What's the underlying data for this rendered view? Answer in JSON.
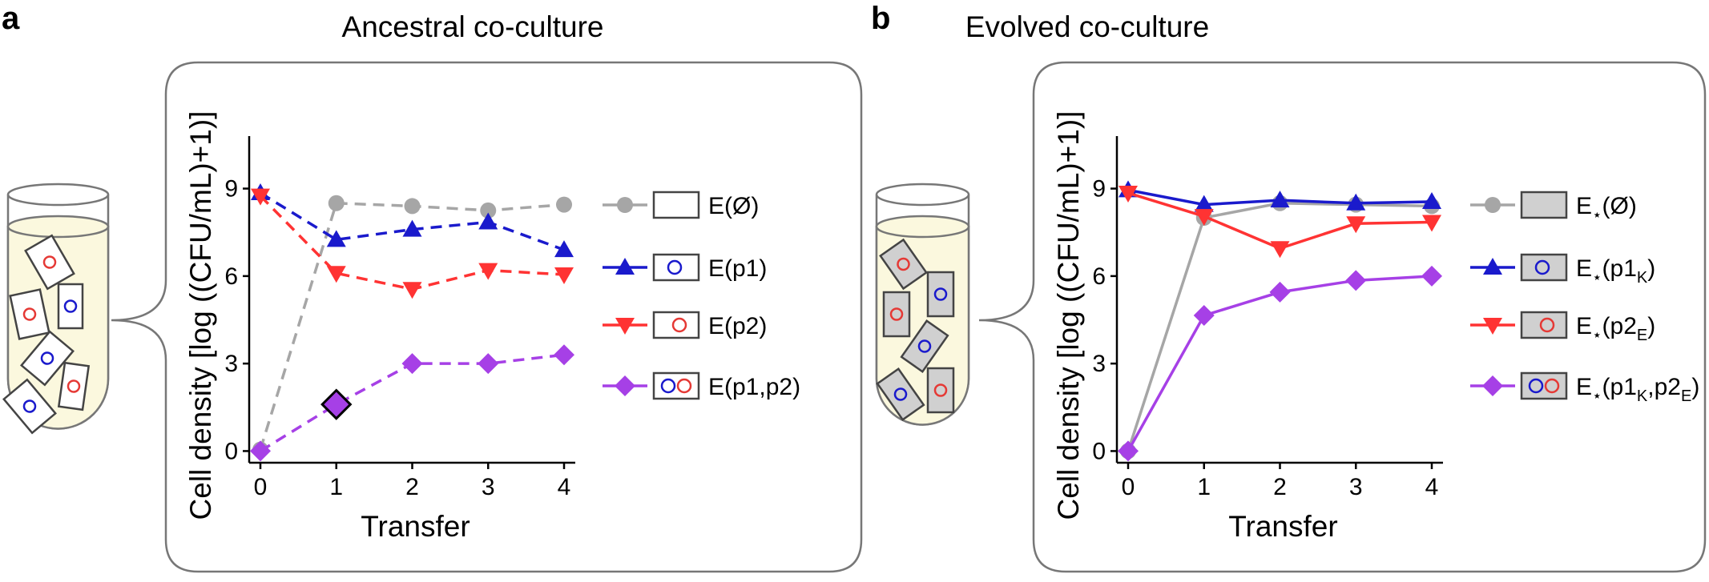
{
  "panels": [
    {
      "letter": "a",
      "title": "Ancestral co-culture",
      "cells": [
        {
          "color": "#e53935",
          "spots": [
            {
              "c": "#e53935"
            }
          ]
        },
        {
          "color": "#1a1acc",
          "spots": [
            {
              "c": "#1a1acc"
            }
          ]
        },
        {
          "color": "#e53935",
          "spots": [
            {
              "c": "#e53935"
            }
          ]
        },
        {
          "color": "#1a1acc",
          "spots": [
            {
              "c": "#1a1acc"
            }
          ]
        },
        {
          "color": "#e53935",
          "spots": [
            {
              "c": "#e53935"
            }
          ]
        },
        {
          "color": "#1a1acc",
          "spots": [
            {
              "c": "#1a1acc"
            }
          ]
        }
      ],
      "legend": [
        {
          "text": "E(Ø)",
          "sub": "",
          "tail": ""
        },
        {
          "text": "E(p1)",
          "sub": "",
          "tail": ""
        },
        {
          "text": "E(p2)",
          "sub": "",
          "tail": ""
        },
        {
          "text": "E(p1,p2)",
          "sub": "",
          "tail": ""
        }
      ]
    },
    {
      "letter": "b",
      "title": "Evolved co-culture",
      "cells": [
        {
          "color": "#e53935",
          "spots": [
            {
              "c": "#e53935"
            }
          ]
        },
        {
          "color": "#1a1acc",
          "spots": [
            {
              "c": "#1a1acc"
            }
          ]
        },
        {
          "color": "#e53935",
          "spots": [
            {
              "c": "#e53935"
            }
          ]
        },
        {
          "color": "#1a1acc",
          "spots": [
            {
              "c": "#1a1acc"
            }
          ]
        },
        {
          "color": "#1a1acc",
          "spots": [
            {
              "c": "#1a1acc"
            }
          ]
        },
        {
          "color": "#e53935",
          "spots": [
            {
              "c": "#e53935"
            }
          ]
        }
      ],
      "legend": [
        {
          "pre": "E",
          "star": "⋆",
          "text": "(Ø)"
        },
        {
          "pre": "E",
          "star": "⋆",
          "text": "(p1",
          "sub": "K",
          "tail": ")"
        },
        {
          "pre": "E",
          "star": "⋆",
          "text": "(p2",
          "sub": "E",
          "tail": ")"
        },
        {
          "pre": "E",
          "star": "⋆",
          "text": "(p1",
          "sub": "K",
          "mid": ",p2",
          "sub2": "E",
          "tail": ")"
        }
      ]
    }
  ],
  "chart_data": [
    {
      "type": "line",
      "title": "Ancestral co-culture",
      "xlabel": "Transfer",
      "ylabel": "Cell density [log ((CFU/mL)+1)]",
      "x": [
        0,
        1,
        2,
        3,
        4
      ],
      "xticks": [
        "0",
        "1",
        "2",
        "3",
        "4"
      ],
      "yticks": [
        "0",
        "3",
        "6",
        "9"
      ],
      "ylim": [
        -0.4,
        10.8
      ],
      "line_style": "dashed",
      "series": [
        {
          "name": "E(Ø)",
          "color": "#a6a6a6",
          "marker": "circle",
          "values": [
            0.05,
            8.5,
            8.4,
            8.25,
            8.45
          ]
        },
        {
          "name": "E(p1)",
          "color": "#1a1acc",
          "marker": "triangle-up",
          "values": [
            8.85,
            7.25,
            7.6,
            7.85,
            6.9
          ]
        },
        {
          "name": "E(p2)",
          "color": "#ff3333",
          "marker": "triangle-down",
          "values": [
            8.75,
            6.1,
            5.55,
            6.2,
            6.05
          ]
        },
        {
          "name": "E(p1,p2)",
          "color": "#a640e6",
          "marker": "diamond",
          "values": [
            0.0,
            1.6,
            3.0,
            3.0,
            3.3
          ],
          "highlight_index": 1
        }
      ]
    },
    {
      "type": "line",
      "title": "Evolved co-culture",
      "xlabel": "Transfer",
      "ylabel": "Cell density [log ((CFU/mL)+1)]",
      "x": [
        0,
        1,
        2,
        3,
        4
      ],
      "xticks": [
        "0",
        "1",
        "2",
        "3",
        "4"
      ],
      "yticks": [
        "0",
        "3",
        "6",
        "9"
      ],
      "ylim": [
        -0.4,
        10.8
      ],
      "line_style": "solid",
      "series": [
        {
          "name": "E⋆(Ø)",
          "color": "#a6a6a6",
          "marker": "circle",
          "values": [
            0.0,
            8.0,
            8.5,
            8.45,
            8.4
          ]
        },
        {
          "name": "E⋆(p1K)",
          "color": "#1a1acc",
          "marker": "triangle-up",
          "values": [
            8.95,
            8.45,
            8.6,
            8.5,
            8.55
          ]
        },
        {
          "name": "E⋆(p2E)",
          "color": "#ff3333",
          "marker": "triangle-down",
          "values": [
            8.85,
            8.05,
            6.95,
            7.8,
            7.85
          ]
        },
        {
          "name": "E⋆(p1K,p2E)",
          "color": "#a640e6",
          "marker": "diamond",
          "values": [
            0.0,
            4.65,
            5.45,
            5.85,
            6.0
          ]
        }
      ]
    }
  ]
}
